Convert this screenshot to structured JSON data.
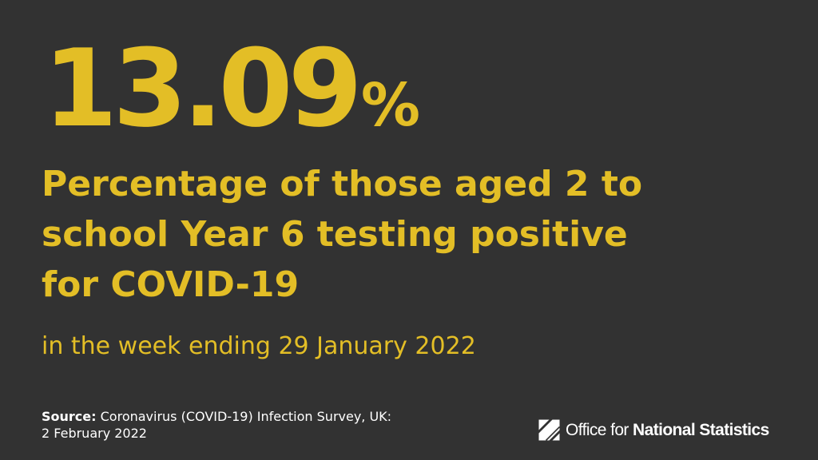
{
  "stat": {
    "value": "13.09",
    "unit": "%"
  },
  "headline": {
    "line_1": "Percentage of those aged 2 to",
    "line_2": "school Year 6 testing positive",
    "line_3": "for COVID-19"
  },
  "period": "in the week ending 29 January 2022",
  "source": {
    "label": "Source:",
    "text": "Coronavirus (COVID-19) Infection Survey, UK:",
    "date": "2 February 2022"
  },
  "logo": {
    "icon": "ons-logo-icon",
    "text_regular": "Office for ",
    "text_bold": "National Statistics"
  },
  "colors": {
    "background": "#323232",
    "accent": "#e3be26",
    "text": "#ffffff"
  }
}
